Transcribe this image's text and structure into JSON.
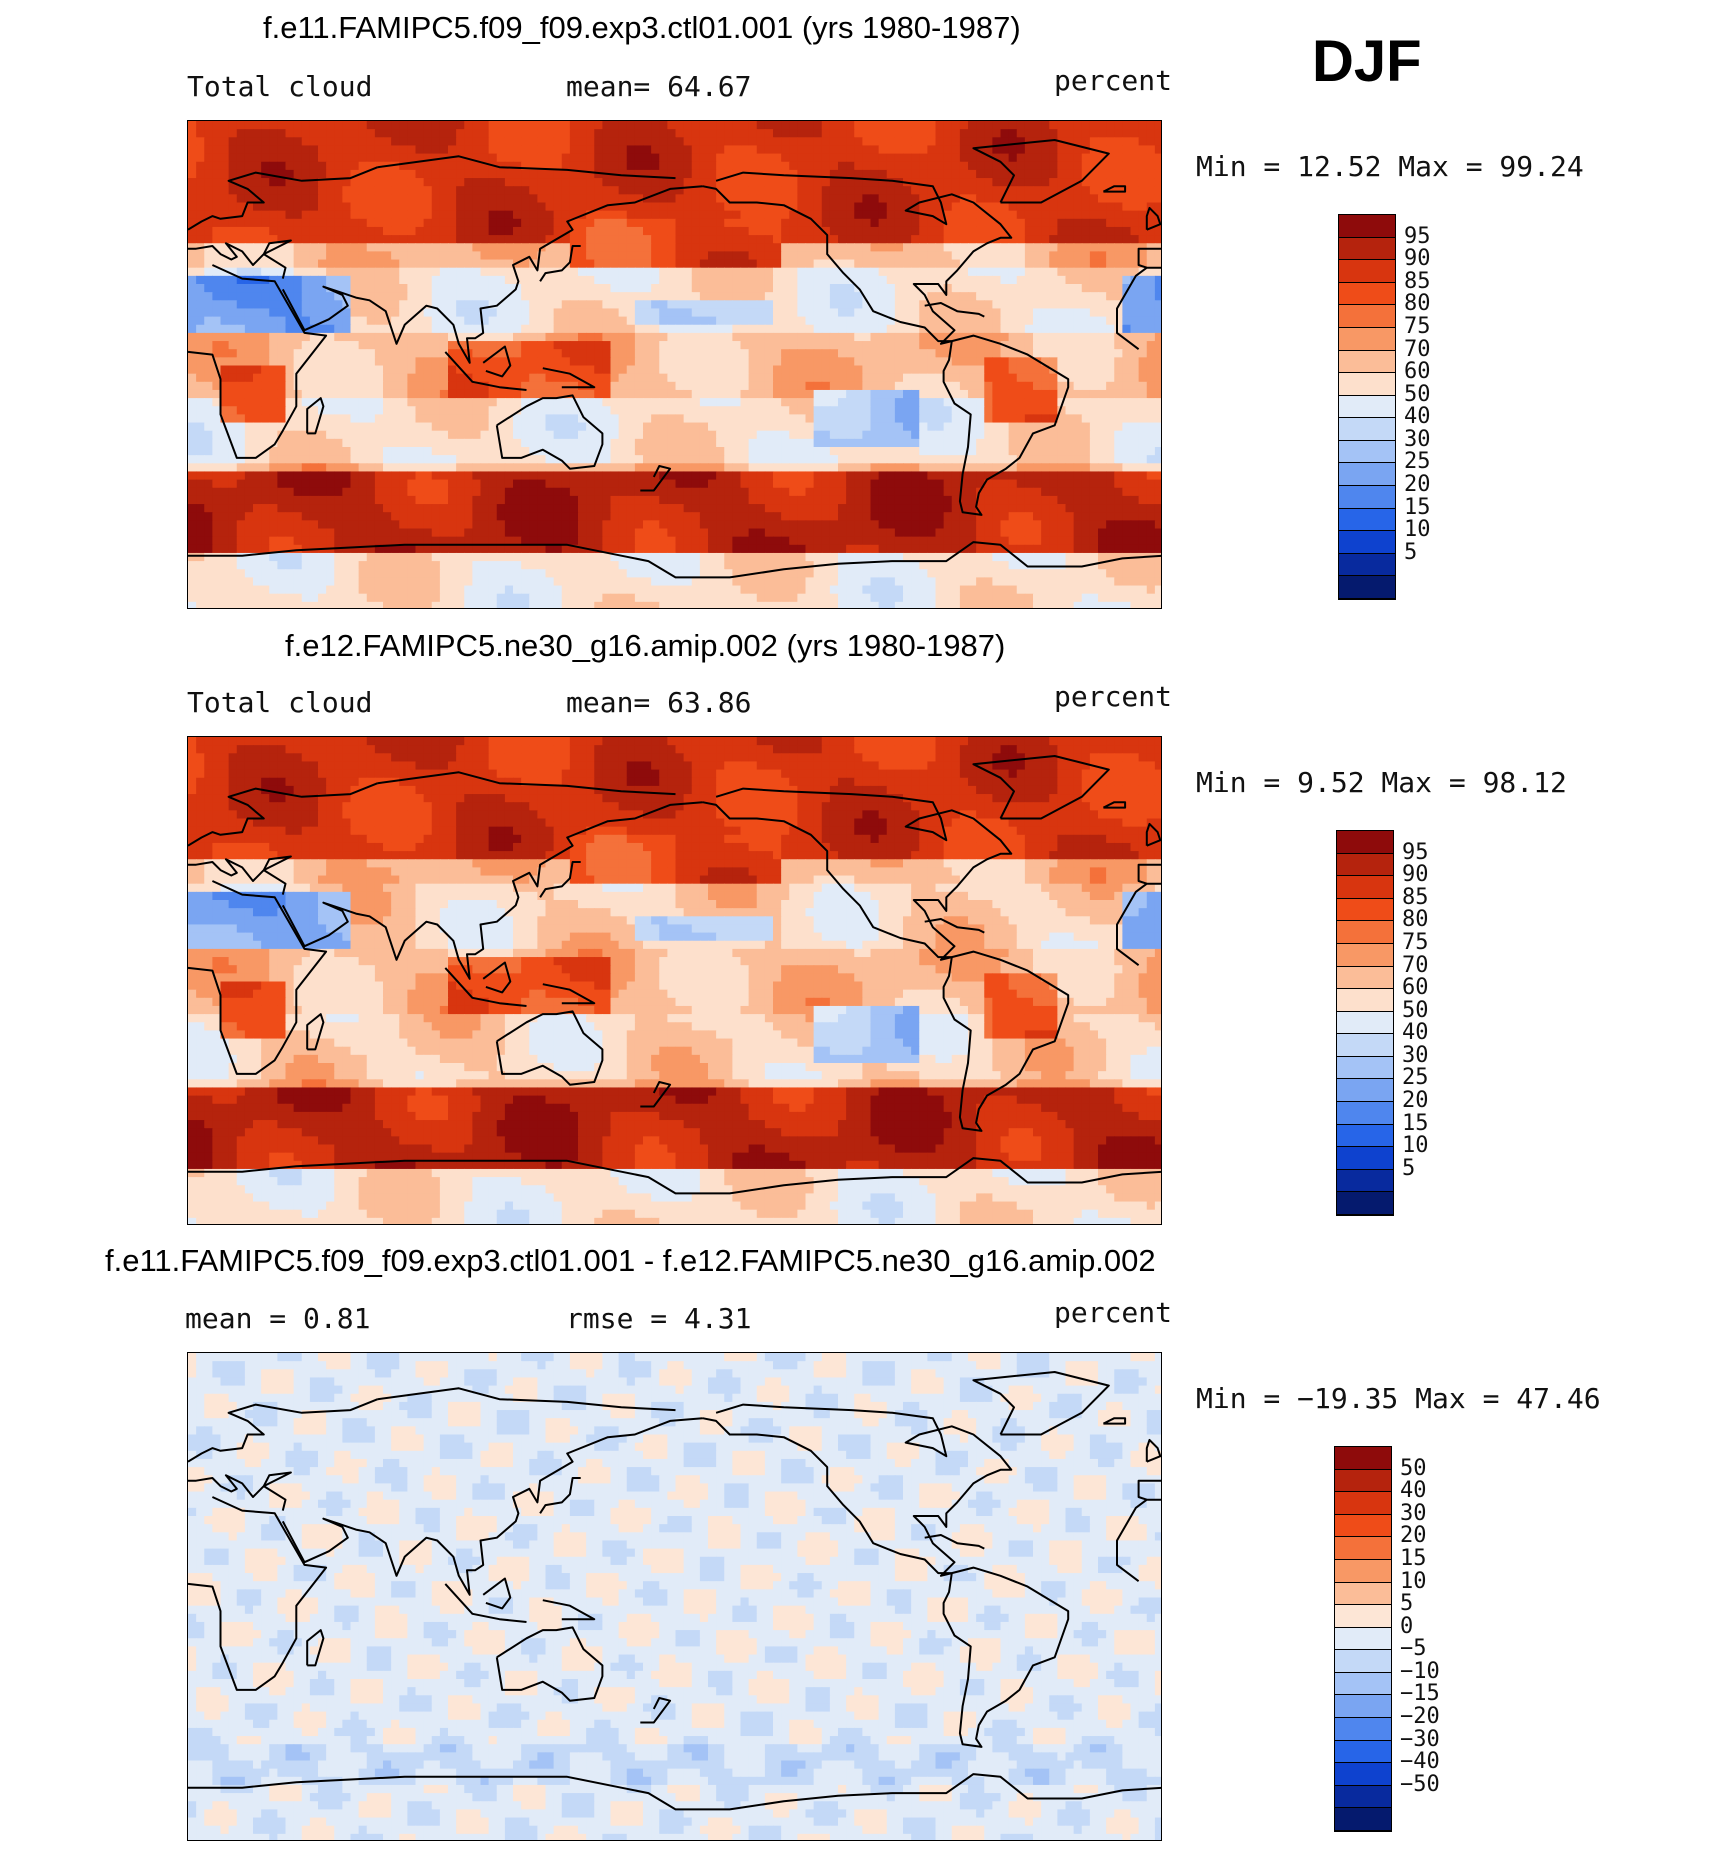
{
  "season": "DJF",
  "panels": [
    {
      "id": "p1",
      "title": "f.e11.FAMIPC5.f09_f09.exp3.ctl01.001 (yrs 1980-1987)",
      "left_label": "Total cloud",
      "center_label": "mean=   64.67",
      "units": "percent",
      "minmax": "Min =   12.52 Max =   99.24",
      "colorbar": {
        "labels": [
          "95",
          "90",
          "85",
          "80",
          "75",
          "70",
          "60",
          "50",
          "40",
          "30",
          "25",
          "20",
          "15",
          "10",
          "5"
        ],
        "colors": [
          "#8e0b0b",
          "#b5230d",
          "#d8350f",
          "#ef4c18",
          "#f4713a",
          "#f89865",
          "#fbbd98",
          "#fde0cc",
          "#e1ebf8",
          "#c4d9f7",
          "#a4c3f6",
          "#7aa5f2",
          "#4f86ee",
          "#2765e8",
          "#0e42cf",
          "#082a9e",
          "#051a6e"
        ]
      },
      "fields": {
        "north_cloud": 0.86,
        "south_ocean_cloud": 0.9,
        "subtropic_clear": 0.3,
        "tropics": 0.62
      }
    },
    {
      "id": "p2",
      "title": "f.e12.FAMIPC5.ne30_g16.amip.002 (yrs 1980-1987)",
      "left_label": "Total cloud",
      "center_label": "mean=   63.86",
      "units": "percent",
      "minmax": "Min =    9.52 Max =   98.12",
      "colorbar": {
        "labels": [
          "95",
          "90",
          "85",
          "80",
          "75",
          "70",
          "60",
          "50",
          "40",
          "30",
          "25",
          "20",
          "15",
          "10",
          "5"
        ],
        "colors": [
          "#8e0b0b",
          "#b5230d",
          "#d8350f",
          "#ef4c18",
          "#f4713a",
          "#f89865",
          "#fbbd98",
          "#fde0cc",
          "#e1ebf8",
          "#c4d9f7",
          "#a4c3f6",
          "#7aa5f2",
          "#4f86ee",
          "#2765e8",
          "#0e42cf",
          "#082a9e",
          "#051a6e"
        ]
      },
      "fields": {
        "north_cloud": 0.86,
        "south_ocean_cloud": 0.9,
        "subtropic_clear": 0.33,
        "tropics": 0.62
      }
    },
    {
      "id": "p3",
      "title": "f.e11.FAMIPC5.f09_f09.exp3.ctl01.001 - f.e12.FAMIPC5.ne30_g16.amip.002",
      "left_label": "mean =    0.81",
      "center_label": "rmse =    4.31",
      "units": "percent",
      "minmax": "Min = −19.35 Max =   47.46",
      "colorbar": {
        "labels": [
          "50",
          "40",
          "30",
          "20",
          "15",
          "10",
          "5",
          "0",
          "−5",
          "−10",
          "−15",
          "−20",
          "−30",
          "−40",
          "−50"
        ],
        "colors": [
          "#8e0b0b",
          "#b5230d",
          "#d8350f",
          "#ef4c18",
          "#f4713a",
          "#f89865",
          "#fbbd98",
          "#fde6d6",
          "#e1ebf8",
          "#c4d9f7",
          "#a4c3f6",
          "#7aa5f2",
          "#4f86ee",
          "#2765e8",
          "#0e42cf",
          "#082a9e",
          "#051a6e"
        ]
      }
    }
  ]
}
